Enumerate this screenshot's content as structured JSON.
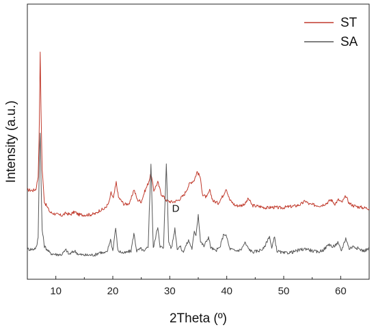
{
  "chart_data": {
    "type": "line",
    "xlabel": "2Theta (º)",
    "ylabel": "Intensity (a.u.)",
    "xlim": [
      5,
      65
    ],
    "x_ticks": [
      10,
      20,
      30,
      40,
      50,
      60
    ],
    "yticks_shown": false,
    "grid": false,
    "legend_position": "top-right",
    "annotations": [
      {
        "text": "D",
        "x": 30.8,
        "series": "SA"
      }
    ],
    "series": [
      {
        "name": "ST",
        "color": "#c0392b",
        "points": [
          [
            5,
            0.272
          ],
          [
            6,
            0.27
          ],
          [
            6.5,
            0.275
          ],
          [
            6.9,
            0.33
          ],
          [
            7.1,
            0.55
          ],
          [
            7.25,
            0.86
          ],
          [
            7.4,
            0.62
          ],
          [
            7.6,
            0.36
          ],
          [
            8,
            0.22
          ],
          [
            9,
            0.176
          ],
          [
            10,
            0.168
          ],
          [
            11,
            0.162
          ],
          [
            11.8,
            0.172
          ],
          [
            12.5,
            0.166
          ],
          [
            13.3,
            0.178
          ],
          [
            14,
            0.166
          ],
          [
            15,
            0.165
          ],
          [
            16,
            0.166
          ],
          [
            17,
            0.17
          ],
          [
            17.7,
            0.185
          ],
          [
            18.5,
            0.19
          ],
          [
            19.3,
            0.215
          ],
          [
            19.7,
            0.26
          ],
          [
            20.1,
            0.235
          ],
          [
            20.6,
            0.305
          ],
          [
            21,
            0.24
          ],
          [
            22,
            0.21
          ],
          [
            23,
            0.215
          ],
          [
            23.7,
            0.275
          ],
          [
            24.3,
            0.23
          ],
          [
            25,
            0.222
          ],
          [
            25.6,
            0.265
          ],
          [
            26.2,
            0.3
          ],
          [
            26.7,
            0.34
          ],
          [
            27.2,
            0.27
          ],
          [
            27.9,
            0.305
          ],
          [
            28.5,
            0.255
          ],
          [
            29.5,
            0.225
          ],
          [
            30.5,
            0.22
          ],
          [
            31.5,
            0.228
          ],
          [
            32.5,
            0.25
          ],
          [
            33.5,
            0.3
          ],
          [
            34.3,
            0.315
          ],
          [
            34.8,
            0.35
          ],
          [
            35.3,
            0.33
          ],
          [
            35.8,
            0.25
          ],
          [
            36.5,
            0.24
          ],
          [
            37,
            0.27
          ],
          [
            37.6,
            0.225
          ],
          [
            38.5,
            0.215
          ],
          [
            39.4,
            0.25
          ],
          [
            39.9,
            0.28
          ],
          [
            40.5,
            0.23
          ],
          [
            41.5,
            0.205
          ],
          [
            42.5,
            0.205
          ],
          [
            43.3,
            0.215
          ],
          [
            43.8,
            0.235
          ],
          [
            44.5,
            0.205
          ],
          [
            46,
            0.2
          ],
          [
            47,
            0.195
          ],
          [
            48,
            0.198
          ],
          [
            49.5,
            0.195
          ],
          [
            51,
            0.2
          ],
          [
            52,
            0.203
          ],
          [
            53,
            0.21
          ],
          [
            53.8,
            0.225
          ],
          [
            54.5,
            0.21
          ],
          [
            55.5,
            0.207
          ],
          [
            56.5,
            0.205
          ],
          [
            57.5,
            0.215
          ],
          [
            58.3,
            0.23
          ],
          [
            59,
            0.212
          ],
          [
            59.6,
            0.23
          ],
          [
            60.2,
            0.218
          ],
          [
            60.9,
            0.245
          ],
          [
            61.5,
            0.215
          ],
          [
            62.2,
            0.205
          ],
          [
            63,
            0.2
          ],
          [
            64,
            0.196
          ],
          [
            65,
            0.192
          ]
        ]
      },
      {
        "name": "SA",
        "color": "#555555",
        "points": [
          [
            5,
            0.018
          ],
          [
            6,
            0.017
          ],
          [
            6.6,
            0.025
          ],
          [
            6.9,
            0.07
          ],
          [
            7.1,
            0.4
          ],
          [
            7.25,
            0.523
          ],
          [
            7.4,
            0.32
          ],
          [
            7.6,
            0.1
          ],
          [
            8,
            0.03
          ],
          [
            9,
            0.0
          ],
          [
            10,
            -0.005
          ],
          [
            11,
            -0.006
          ],
          [
            11.8,
            0.015
          ],
          [
            12.3,
            -0.005
          ],
          [
            13.3,
            0.01
          ],
          [
            14,
            -0.005
          ],
          [
            15,
            -0.008
          ],
          [
            16,
            -0.008
          ],
          [
            17,
            -0.006
          ],
          [
            17.7,
            0.005
          ],
          [
            18.5,
            0.0
          ],
          [
            19,
            0.005
          ],
          [
            19.6,
            0.06
          ],
          [
            20,
            0.01
          ],
          [
            20.5,
            0.11
          ],
          [
            20.9,
            0.01
          ],
          [
            22,
            0.0
          ],
          [
            23.2,
            0.01
          ],
          [
            23.7,
            0.085
          ],
          [
            24.2,
            0.01
          ],
          [
            25,
            0.02
          ],
          [
            25.5,
            0.005
          ],
          [
            26.2,
            0.03
          ],
          [
            26.7,
            0.385
          ],
          [
            27.1,
            0.02
          ],
          [
            27.9,
            0.115
          ],
          [
            28.3,
            0.03
          ],
          [
            28.9,
            0.02
          ],
          [
            29.4,
            0.39
          ],
          [
            29.8,
            0.05
          ],
          [
            30.3,
            0.02
          ],
          [
            30.9,
            0.107
          ],
          [
            31.3,
            0.02
          ],
          [
            31.8,
            0.03
          ],
          [
            32.3,
            0.005
          ],
          [
            33.3,
            0.055
          ],
          [
            33.9,
            0.02
          ],
          [
            34.3,
            0.09
          ],
          [
            34.6,
            0.08
          ],
          [
            35,
            0.167
          ],
          [
            35.4,
            0.05
          ],
          [
            36,
            0.03
          ],
          [
            36.8,
            0.07
          ],
          [
            37.2,
            0.025
          ],
          [
            38,
            0.01
          ],
          [
            38.8,
            0.025
          ],
          [
            39.5,
            0.085
          ],
          [
            40,
            0.07
          ],
          [
            40.5,
            0.02
          ],
          [
            41.5,
            0.01
          ],
          [
            42.5,
            0.015
          ],
          [
            43.2,
            0.045
          ],
          [
            43.8,
            0.02
          ],
          [
            44.5,
            0.005
          ],
          [
            45.5,
            0.01
          ],
          [
            46.5,
            0.02
          ],
          [
            47.5,
            0.075
          ],
          [
            47.9,
            0.02
          ],
          [
            48.4,
            0.07
          ],
          [
            48.8,
            0.01
          ],
          [
            50,
            0.0
          ],
          [
            51.5,
            0.005
          ],
          [
            53,
            0.015
          ],
          [
            54,
            0.02
          ],
          [
            55,
            0.01
          ],
          [
            56,
            0.005
          ],
          [
            57,
            0.015
          ],
          [
            58,
            0.04
          ],
          [
            58.6,
            0.025
          ],
          [
            59.5,
            0.045
          ],
          [
            60.1,
            0.01
          ],
          [
            60.9,
            0.065
          ],
          [
            61.5,
            0.02
          ],
          [
            62.3,
            0.03
          ],
          [
            63.1,
            0.02
          ],
          [
            64,
            0.01
          ],
          [
            65,
            0.02
          ]
        ]
      }
    ]
  }
}
